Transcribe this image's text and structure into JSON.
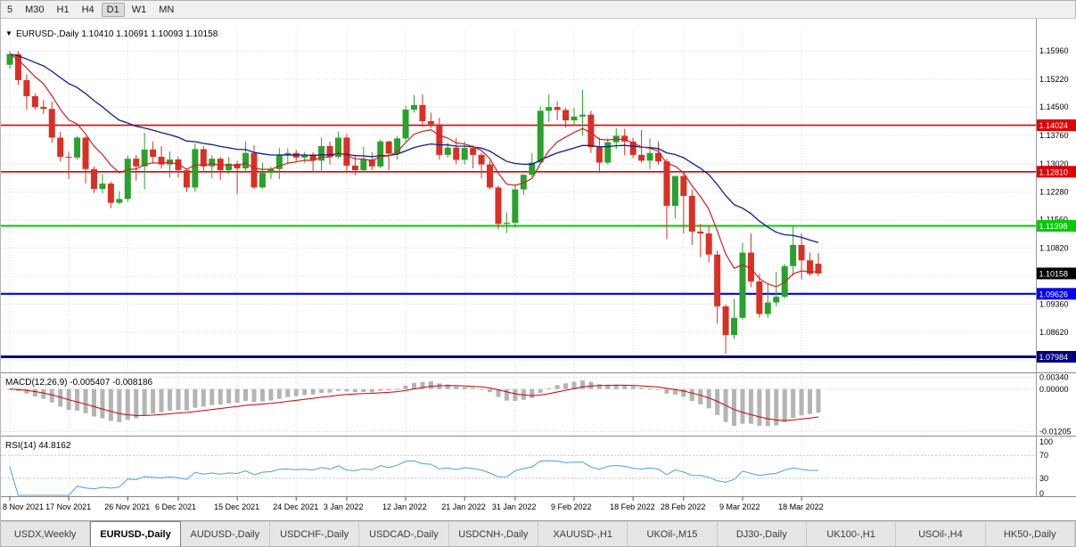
{
  "toolbar": {
    "timeframes": [
      "5",
      "M30",
      "H1",
      "H4",
      "D1",
      "W1",
      "MN"
    ],
    "active": "D1"
  },
  "price_chart": {
    "symbol_label": "EURUSD-,Daily",
    "dropdown_icon": "▼",
    "ohlc_text": "1.10410 1.10691 1.10093 1.10158",
    "open": "1.10410",
    "high": "1.10691",
    "low": "1.10093",
    "close": "1.10158",
    "y_axis_labels": [
      "1.15960",
      "1.15220",
      "1.14500",
      "1.13760",
      "1.13020",
      "1.12280",
      "1.11560",
      "1.10820",
      "1.10080",
      "1.09360",
      "1.08620",
      "1.07900"
    ],
    "levels": [
      {
        "label": "1.14024",
        "value": 1.14024,
        "color": "#e00000",
        "width": 1.6
      },
      {
        "label": "1.12810",
        "value": 1.1281,
        "color": "#e00000",
        "width": 1.6
      },
      {
        "label": "1.11398",
        "value": 1.11398,
        "color": "#00cc00",
        "width": 2
      },
      {
        "label": "1.09626",
        "value": 1.09626,
        "color": "#0000ee",
        "width": 2.2
      },
      {
        "label": "1.07984",
        "value": 1.07984,
        "color": "#000080",
        "width": 3
      }
    ],
    "current_price": {
      "label": "1.10158",
      "value": 1.10158,
      "bg": "#000000"
    },
    "colors": {
      "bull": "#2aa12e",
      "bear": "#d93025",
      "ma_fast": "#d02020",
      "ma_slow": "#0a1f8f",
      "grid": "#d9d9d9"
    }
  },
  "macd_panel": {
    "title": "MACD(12,26,9)",
    "values": "-0.005407 -0.008186",
    "axis_labels": [
      {
        "label": "0.00340",
        "value": 0.0034
      },
      {
        "label": "0.00000",
        "value": 0
      },
      {
        "label": "-0.01205",
        "value": -0.01205
      }
    ],
    "range": [
      0.004,
      -0.013
    ],
    "histogram_color": "#b4b4b4",
    "signal_color": "#cc0000"
  },
  "rsi_panel": {
    "title": "RSI(14)",
    "value": "44.8162",
    "axis_labels": [
      {
        "label": "100",
        "value": 100
      },
      {
        "label": "70",
        "value": 70
      },
      {
        "label": "30",
        "value": 30
      },
      {
        "label": "0",
        "value": 0
      }
    ],
    "levels": [
      70,
      30
    ],
    "line_color": "#4aa0d8"
  },
  "tabs": {
    "items": [
      "USDX,Weekly",
      "EURUSD-,Daily",
      "AUDUSD-,Daily",
      "USDCHF-,Daily",
      "USDCAD-,Daily",
      "USDCNH-,Daily",
      "XAUUSD-,H1",
      "UKOil-,M15",
      "DJ30-,Daily",
      "UK100-,H1",
      "USOil-,H4",
      "HK50-,Daily"
    ],
    "active_index": 1
  },
  "chart_data": {
    "type": "candlestick",
    "title": "EURUSD-,Daily",
    "timeframe": "Daily",
    "ylim": [
      1.076,
      1.165
    ],
    "x_tick_labels": [
      "8 Nov 2021",
      "17 Nov 2021",
      "26 Nov 2021",
      "6 Dec 2021",
      "15 Dec 2021",
      "24 Dec 2021",
      "3 Jan 2022",
      "12 Jan 2022",
      "21 Jan 2022",
      "31 Jan 2022",
      "9 Feb 2022",
      "18 Feb 2022",
      "28 Feb 2022",
      "9 Mar 2022",
      "18 Mar 2022"
    ],
    "x_tick_indices": [
      0,
      7,
      14,
      20,
      27,
      34,
      40,
      47,
      54,
      60,
      67,
      74,
      80,
      87,
      94
    ],
    "candles": [
      [
        1.156,
        1.1596,
        1.155,
        1.1588
      ],
      [
        1.1588,
        1.1596,
        1.1508,
        1.152
      ],
      [
        1.152,
        1.1535,
        1.1443,
        1.1478
      ],
      [
        1.1478,
        1.1485,
        1.1443,
        1.145
      ],
      [
        1.145,
        1.1468,
        1.1432,
        1.1445
      ],
      [
        1.1445,
        1.1464,
        1.1356,
        1.137
      ],
      [
        1.137,
        1.1385,
        1.1308,
        1.132
      ],
      [
        1.132,
        1.1333,
        1.1262,
        1.1318
      ],
      [
        1.1318,
        1.1374,
        1.1313,
        1.137
      ],
      [
        1.137,
        1.1374,
        1.125,
        1.1288
      ],
      [
        1.1288,
        1.1295,
        1.1226,
        1.1236
      ],
      [
        1.1236,
        1.1275,
        1.1225,
        1.125
      ],
      [
        1.125,
        1.1255,
        1.1186,
        1.12
      ],
      [
        1.12,
        1.123,
        1.1196,
        1.121
      ],
      [
        1.121,
        1.1323,
        1.1203,
        1.1315
      ],
      [
        1.1315,
        1.1325,
        1.1258,
        1.1295
      ],
      [
        1.1295,
        1.1383,
        1.1235,
        1.1339
      ],
      [
        1.1339,
        1.136,
        1.1305,
        1.132
      ],
      [
        1.132,
        1.1348,
        1.1289,
        1.13
      ],
      [
        1.13,
        1.1334,
        1.1266,
        1.1313
      ],
      [
        1.1313,
        1.132,
        1.1267,
        1.1285
      ],
      [
        1.1285,
        1.129,
        1.1228,
        1.124
      ],
      [
        1.124,
        1.1355,
        1.1228,
        1.134
      ],
      [
        1.134,
        1.1348,
        1.128,
        1.1295
      ],
      [
        1.1295,
        1.1324,
        1.1264,
        1.1315
      ],
      [
        1.1315,
        1.132,
        1.126,
        1.1285
      ],
      [
        1.1285,
        1.132,
        1.1275,
        1.1302
      ],
      [
        1.1302,
        1.131,
        1.1222,
        1.129
      ],
      [
        1.129,
        1.136,
        1.128,
        1.133
      ],
      [
        1.133,
        1.135,
        1.1236,
        1.124
      ],
      [
        1.124,
        1.1305,
        1.1237,
        1.1278
      ],
      [
        1.1278,
        1.1295,
        1.1262,
        1.1288
      ],
      [
        1.1288,
        1.1343,
        1.1262,
        1.1325
      ],
      [
        1.1325,
        1.1342,
        1.13,
        1.133
      ],
      [
        1.133,
        1.1338,
        1.1308,
        1.1318
      ],
      [
        1.1318,
        1.1333,
        1.1304,
        1.1326
      ],
      [
        1.1326,
        1.1332,
        1.128,
        1.131
      ],
      [
        1.131,
        1.137,
        1.128,
        1.1348
      ],
      [
        1.1348,
        1.136,
        1.13,
        1.132
      ],
      [
        1.132,
        1.1386,
        1.1315,
        1.137
      ],
      [
        1.137,
        1.138,
        1.1278,
        1.1297
      ],
      [
        1.1297,
        1.1324,
        1.1272,
        1.1285
      ],
      [
        1.1285,
        1.1346,
        1.128,
        1.1313
      ],
      [
        1.1313,
        1.1332,
        1.1285,
        1.1295
      ],
      [
        1.1295,
        1.1365,
        1.129,
        1.136
      ],
      [
        1.136,
        1.1362,
        1.1285,
        1.1328
      ],
      [
        1.1328,
        1.1374,
        1.1313,
        1.1368
      ],
      [
        1.1368,
        1.1453,
        1.136,
        1.1443
      ],
      [
        1.1443,
        1.1481,
        1.1435,
        1.1455
      ],
      [
        1.1455,
        1.1483,
        1.1398,
        1.1413
      ],
      [
        1.1413,
        1.1435,
        1.1395,
        1.1405
      ],
      [
        1.1405,
        1.1422,
        1.1313,
        1.1325
      ],
      [
        1.1325,
        1.1357,
        1.1318,
        1.1344
      ],
      [
        1.1344,
        1.1369,
        1.13,
        1.1312
      ],
      [
        1.1312,
        1.136,
        1.13,
        1.1343
      ],
      [
        1.1343,
        1.135,
        1.129,
        1.1325
      ],
      [
        1.1325,
        1.133,
        1.1264,
        1.13
      ],
      [
        1.13,
        1.131,
        1.1235,
        1.124
      ],
      [
        1.124,
        1.1245,
        1.1131,
        1.1145
      ],
      [
        1.1145,
        1.1175,
        1.1121,
        1.1148
      ],
      [
        1.1148,
        1.1248,
        1.1135,
        1.1235
      ],
      [
        1.1235,
        1.1275,
        1.122,
        1.1273
      ],
      [
        1.1273,
        1.133,
        1.1267,
        1.1305
      ],
      [
        1.1305,
        1.1452,
        1.13,
        1.144
      ],
      [
        1.144,
        1.1483,
        1.1411,
        1.145
      ],
      [
        1.145,
        1.1465,
        1.1415,
        1.1442
      ],
      [
        1.1442,
        1.1448,
        1.1396,
        1.1415
      ],
      [
        1.1415,
        1.1448,
        1.1402,
        1.1425
      ],
      [
        1.1425,
        1.1495,
        1.1375,
        1.143
      ],
      [
        1.143,
        1.144,
        1.133,
        1.1345
      ],
      [
        1.1345,
        1.137,
        1.1278,
        1.1305
      ],
      [
        1.1305,
        1.1368,
        1.13,
        1.1358
      ],
      [
        1.1358,
        1.1395,
        1.134,
        1.1375
      ],
      [
        1.1375,
        1.1393,
        1.1324,
        1.136
      ],
      [
        1.136,
        1.137,
        1.1316,
        1.1325
      ],
      [
        1.1325,
        1.139,
        1.1305,
        1.131
      ],
      [
        1.131,
        1.1368,
        1.1288,
        1.133
      ],
      [
        1.133,
        1.136,
        1.13,
        1.1308
      ],
      [
        1.1308,
        1.1315,
        1.1106,
        1.1192
      ],
      [
        1.1192,
        1.127,
        1.116,
        1.127
      ],
      [
        1.127,
        1.128,
        1.112,
        1.1218
      ],
      [
        1.1218,
        1.1235,
        1.109,
        1.1125
      ],
      [
        1.1125,
        1.1145,
        1.1058,
        1.112
      ],
      [
        1.112,
        1.114,
        1.1045,
        1.1065
      ],
      [
        1.1065,
        1.1075,
        1.0885,
        1.093
      ],
      [
        1.093,
        1.0935,
        1.0806,
        1.0855
      ],
      [
        1.0855,
        1.095,
        1.0845,
        1.09
      ],
      [
        1.09,
        1.1095,
        1.0895,
        1.107
      ],
      [
        1.107,
        1.112,
        1.098,
        1.0995
      ],
      [
        1.0995,
        1.1015,
        1.09,
        1.091
      ],
      [
        1.091,
        1.099,
        1.09,
        1.094
      ],
      [
        1.094,
        1.102,
        1.093,
        1.0955
      ],
      [
        1.0955,
        1.104,
        1.095,
        1.1035
      ],
      [
        1.1035,
        1.1138,
        1.101,
        1.109
      ],
      [
        1.109,
        1.112,
        1.1,
        1.105
      ],
      [
        1.105,
        1.107,
        1.101,
        1.1015
      ],
      [
        1.1041,
        1.10691,
        1.10093,
        1.10158
      ]
    ]
  }
}
